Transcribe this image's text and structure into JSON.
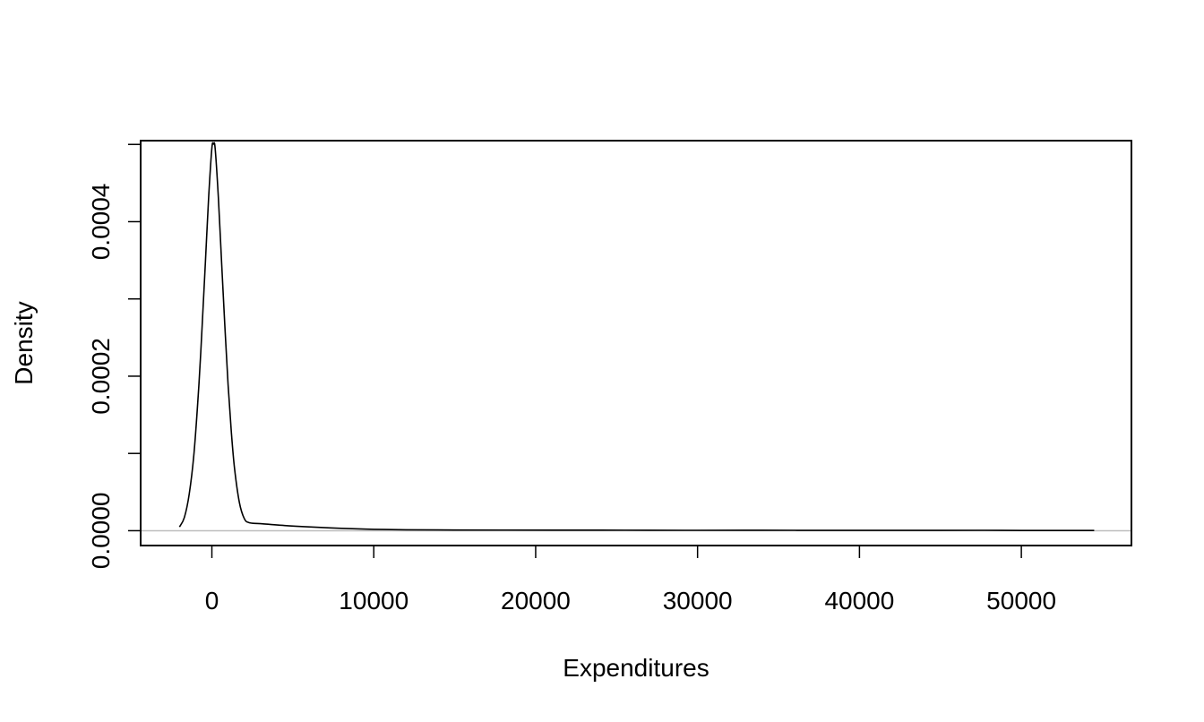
{
  "chart_data": {
    "type": "line",
    "title": "",
    "xlabel": "Expenditures",
    "ylabel": "Density",
    "xlim": [
      -4400,
      56800
    ],
    "ylim": [
      -1.92e-05,
      0.0005049
    ],
    "x_ticks": [
      0,
      10000,
      20000,
      30000,
      40000,
      50000
    ],
    "x_tick_labels": [
      "0",
      "10000",
      "20000",
      "30000",
      "40000",
      "50000"
    ],
    "y_ticks": [
      0.0,
      0.0001,
      0.0002,
      0.0003,
      0.0004,
      0.0005
    ],
    "y_tick_labels": [
      "0.0000",
      "",
      "0.0002",
      "",
      "0.0004",
      ""
    ],
    "baseline": 0,
    "grid": false,
    "legend": "none",
    "line_color": "#000000",
    "baseline_color": "#bebebe",
    "series": [
      {
        "x": [
          -2000,
          -1700,
          -1400,
          -1100,
          -800,
          -600,
          -400,
          -200,
          0,
          100,
          200,
          400,
          600,
          800,
          1000,
          1200,
          1400,
          1700,
          2000,
          2300,
          3000,
          4500,
          6000,
          8000,
          10000,
          12000,
          15000,
          18000,
          21000,
          24000,
          27000,
          30000,
          33000,
          36000,
          40000,
          44000,
          47700,
          50000,
          54500
        ],
        "y": [
          4.9e-06,
          1.71e-05,
          4.74e-05,
          0.0001013,
          0.0001893,
          0.0002655,
          0.0003476,
          0.0004313,
          0.0004953,
          0.0005003,
          0.0004953,
          0.0004313,
          0.0003476,
          0.0002655,
          0.0001893,
          0.0001282,
          8.05e-05,
          3.64e-05,
          1.58e-05,
          1.04e-05,
          9.1e-06,
          6.7e-06,
          4.9e-06,
          3e-06,
          1.8e-06,
          1.2e-06,
          9e-07,
          8e-07,
          7e-07,
          7e-07,
          6e-07,
          5e-07,
          6e-07,
          5e-07,
          4e-07,
          4e-07,
          5e-07,
          3e-07,
          3e-07
        ]
      }
    ]
  }
}
